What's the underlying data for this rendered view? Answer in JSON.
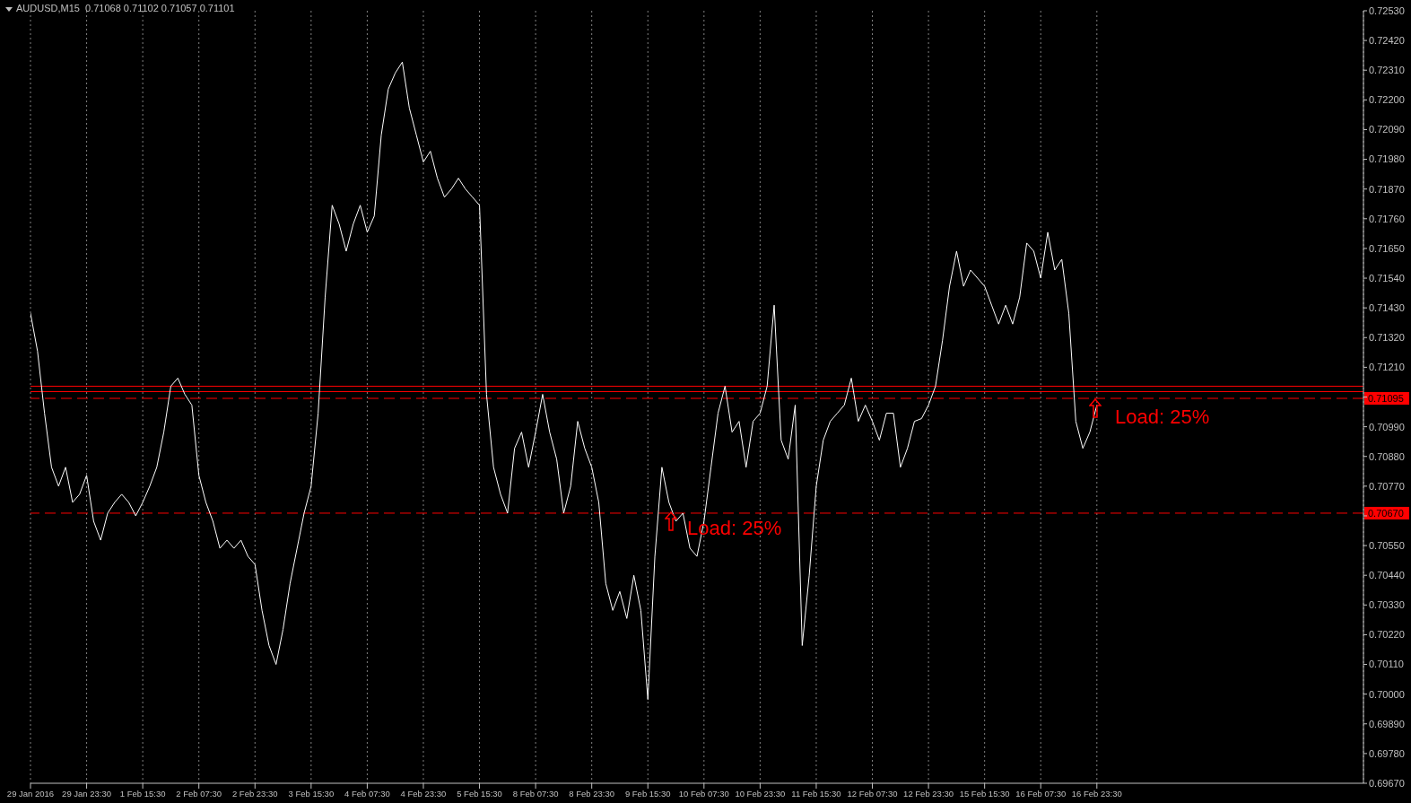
{
  "chart_data": {
    "type": "line",
    "title": "AUDUSD,M15  0.71068 0.71102 0.71057 0.71101",
    "categories": [
      "29 Jan 2016",
      null,
      null,
      null,
      null,
      null,
      null,
      null,
      "29 Jan 23:30",
      null,
      null,
      null,
      null,
      null,
      null,
      null,
      "1 Feb 15:30",
      null,
      null,
      null,
      null,
      null,
      null,
      null,
      "2 Feb 07:30",
      null,
      null,
      null,
      null,
      null,
      null,
      null,
      "2 Feb 23:30",
      null,
      null,
      null,
      null,
      null,
      null,
      null,
      "3 Feb 15:30",
      null,
      null,
      null,
      null,
      null,
      null,
      null,
      "4 Feb 07:30",
      null,
      null,
      null,
      null,
      null,
      null,
      null,
      "4 Feb 23:30",
      null,
      null,
      null,
      null,
      null,
      null,
      null,
      "5 Feb 15:30",
      null,
      null,
      null,
      null,
      null,
      null,
      null,
      "8 Feb 07:30",
      null,
      null,
      null,
      null,
      null,
      null,
      null,
      "8 Feb 23:30",
      null,
      null,
      null,
      null,
      null,
      null,
      null,
      "9 Feb 15:30",
      null,
      null,
      null,
      null,
      null,
      null,
      null,
      "10 Feb 07:30",
      null,
      null,
      null,
      null,
      null,
      null,
      null,
      "10 Feb 23:30",
      null,
      null,
      null,
      null,
      null,
      null,
      null,
      "11 Feb 15:30",
      null,
      null,
      null,
      null,
      null,
      null,
      null,
      "12 Feb 07:30",
      null,
      null,
      null,
      null,
      null,
      null,
      null,
      "12 Feb 23:30",
      null,
      null,
      null,
      null,
      null,
      null,
      null,
      "15 Feb 15:30",
      null,
      null,
      null,
      null,
      null,
      null,
      null,
      "16 Feb 07:30",
      null,
      null,
      null,
      null,
      null,
      null,
      null,
      "16 Feb 23:30",
      null,
      null,
      null,
      null,
      null,
      null,
      null,
      null,
      null,
      null,
      null,
      null,
      null,
      null,
      null,
      null,
      null,
      null,
      null,
      null,
      null,
      null,
      null,
      null,
      null,
      null,
      null,
      null,
      null,
      null,
      null,
      null,
      null,
      null,
      null,
      null,
      null,
      null
    ],
    "values": [
      0.7141,
      0.7127,
      0.7104,
      0.7084,
      0.7077,
      0.7084,
      0.7071,
      0.7074,
      0.7081,
      0.7064,
      0.7057,
      0.7067,
      0.7071,
      0.7074,
      0.7071,
      0.7066,
      0.7071,
      0.7077,
      0.7084,
      0.7097,
      0.7114,
      0.7117,
      0.7111,
      0.7107,
      0.7081,
      0.7071,
      0.7064,
      0.7054,
      0.7057,
      0.7054,
      0.7057,
      0.7051,
      0.7048,
      0.7031,
      0.7018,
      0.7011,
      0.7024,
      0.7041,
      0.7054,
      0.7067,
      0.7077,
      0.7104,
      0.7147,
      0.7181,
      0.7174,
      0.7164,
      0.7174,
      0.7181,
      0.7171,
      0.7177,
      0.7207,
      0.7224,
      0.723,
      0.7234,
      0.7217,
      0.7207,
      0.7197,
      0.7201,
      0.7191,
      0.7184,
      0.7187,
      0.7191,
      0.7187,
      0.7184,
      0.7181,
      0.7111,
      0.7084,
      0.7074,
      0.7067,
      0.7091,
      0.7097,
      0.7084,
      0.7097,
      0.7111,
      0.7097,
      0.7087,
      0.7067,
      0.7077,
      0.7101,
      0.7091,
      0.7084,
      0.7071,
      0.7041,
      0.7031,
      0.7038,
      0.7028,
      0.7044,
      0.7031,
      0.6998,
      0.7051,
      0.7084,
      0.7071,
      0.7064,
      0.7067,
      0.7054,
      0.7051,
      0.7064,
      0.7084,
      0.7104,
      0.7114,
      0.7097,
      0.7101,
      0.7084,
      0.7101,
      0.7104,
      0.7114,
      0.7144,
      0.7094,
      0.7087,
      0.7107,
      0.7018,
      0.7044,
      0.7077,
      0.7094,
      0.7101,
      0.7104,
      0.7107,
      0.7117,
      0.7101,
      0.7107,
      0.7101,
      0.7094,
      0.7104,
      0.7104,
      0.7084,
      0.7091,
      0.7101,
      0.7102,
      0.7107,
      0.7114,
      0.7131,
      0.7151,
      0.7164,
      0.7151,
      0.7157,
      0.7154,
      0.7151,
      0.7144,
      0.7137,
      0.7144,
      0.7137,
      0.7147,
      0.7167,
      0.7164,
      0.7154,
      0.7171,
      0.7157,
      0.7161,
      0.7141,
      0.7101,
      0.7091,
      0.7097,
      0.7107,
      null,
      null,
      null,
      null,
      null,
      null,
      null,
      null,
      null,
      null,
      null,
      null,
      null,
      null,
      null,
      null,
      null,
      null,
      null,
      null,
      null,
      null,
      null,
      null,
      null,
      null,
      null,
      null,
      null,
      null,
      null,
      null,
      null,
      null,
      null,
      null,
      null,
      null
    ],
    "color": "#ffffff",
    "ylim": [
      0.6967,
      0.7253
    ],
    "yticks": [
      {
        "value": 0.6967,
        "label": "0.69670"
      },
      {
        "value": 0.6978,
        "label": "0.69780"
      },
      {
        "value": 0.6989,
        "label": "0.69890"
      },
      {
        "value": 0.7,
        "label": "0.70000"
      },
      {
        "value": 0.7011,
        "label": "0.70110"
      },
      {
        "value": 0.7022,
        "label": "0.70220"
      },
      {
        "value": 0.7033,
        "label": "0.70330"
      },
      {
        "value": 0.7044,
        "label": "0.70440"
      },
      {
        "value": 0.7055,
        "label": "0.70550"
      },
      {
        "value": 0.7066,
        "label": null
      },
      {
        "value": 0.7077,
        "label": "0.70770"
      },
      {
        "value": 0.7088,
        "label": "0.70880"
      },
      {
        "value": 0.7099,
        "label": "0.70990"
      },
      {
        "value": 0.711,
        "label": null
      },
      {
        "value": 0.7121,
        "label": "0.71210"
      },
      {
        "value": 0.7132,
        "label": "0.71320"
      },
      {
        "value": 0.7143,
        "label": "0.71430"
      },
      {
        "value": 0.7154,
        "label": "0.71540"
      },
      {
        "value": 0.7165,
        "label": "0.71650"
      },
      {
        "value": 0.7176,
        "label": "0.71760"
      },
      {
        "value": 0.7187,
        "label": "0.71870"
      },
      {
        "value": 0.7198,
        "label": "0.71980"
      },
      {
        "value": 0.7209,
        "label": "0.72090"
      },
      {
        "value": 0.722,
        "label": "0.72200"
      },
      {
        "value": 0.7231,
        "label": "0.72310"
      },
      {
        "value": 0.7242,
        "label": "0.72420"
      },
      {
        "value": 0.7253,
        "label": "0.72530"
      }
    ],
    "grid": "x",
    "marker": "none",
    "line_style": "solid",
    "ref_lines": [
      {
        "axis": "y",
        "value": 0.7114,
        "color": "#ff0000",
        "line_style": "solid"
      },
      {
        "axis": "y",
        "value": 0.7112,
        "color": "#ff0000",
        "line_style": "solid"
      },
      {
        "axis": "y",
        "value": 0.71095,
        "label": "0.71095",
        "color": "#ff0000",
        "line_style": "dashed"
      },
      {
        "axis": "y",
        "value": 0.7067,
        "label": "0.70670",
        "color": "#ff0000",
        "line_style": "dashed"
      }
    ],
    "annotations": [
      "Load: 25%",
      "Load: 25%"
    ]
  }
}
